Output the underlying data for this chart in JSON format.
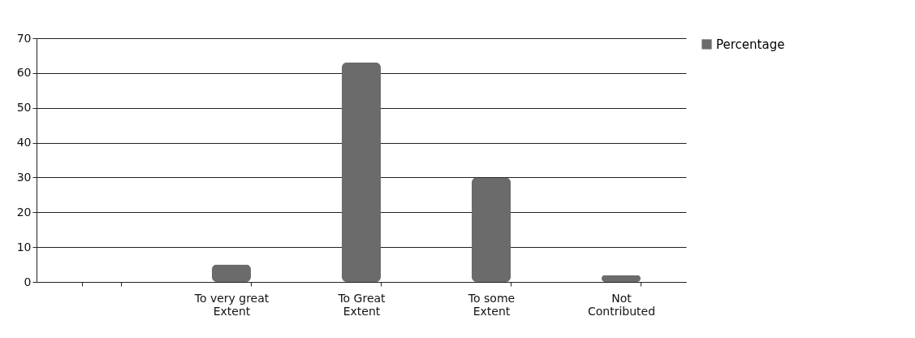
{
  "chart_data": {
    "type": "bar",
    "categories": [
      null,
      "To very great Extent",
      "To Great Extent",
      "To some Extent",
      "Not Contributed"
    ],
    "series": [
      {
        "name": "Percentage",
        "color": "#6b6b6b",
        "values": [
          null,
          5,
          63,
          30,
          2
        ]
      }
    ],
    "ylim": [
      0,
      70
    ],
    "yticks": [
      0,
      10,
      20,
      30,
      40,
      50,
      60,
      70
    ],
    "grid": "y",
    "legend": "right"
  }
}
